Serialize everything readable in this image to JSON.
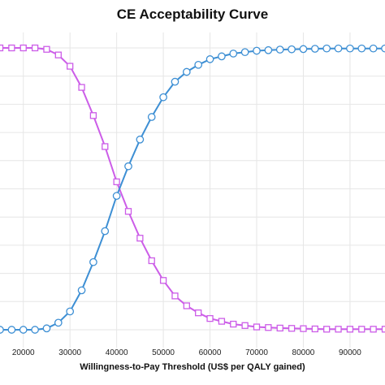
{
  "chart_data": {
    "type": "line",
    "title": "CE Acceptability Curve",
    "xlabel": "Willingness-to-Pay Threshold (US$ per QALY gained)",
    "ylabel": "",
    "x_tick_labels": [
      "20000",
      "30000",
      "40000",
      "50000",
      "60000",
      "70000",
      "80000",
      "90000"
    ],
    "xlim": [
      15000,
      97500
    ],
    "ylim": [
      0,
      1
    ],
    "grid": true,
    "colors": {
      "series_a": "#cc5de8",
      "series_b": "#3d8fd4"
    },
    "x": [
      15000,
      17500,
      20000,
      22500,
      25000,
      27500,
      30000,
      32500,
      35000,
      37500,
      40000,
      42500,
      45000,
      47500,
      50000,
      52500,
      55000,
      57500,
      60000,
      62500,
      65000,
      67500,
      70000,
      72500,
      75000,
      77500,
      80000,
      82500,
      85000,
      87500,
      90000,
      92500,
      95000,
      97500
    ],
    "series": [
      {
        "marker": "square",
        "color": "#cc5de8",
        "values": [
          1.0,
          1.0,
          1.0,
          1.0,
          0.995,
          0.975,
          0.935,
          0.86,
          0.76,
          0.65,
          0.525,
          0.42,
          0.325,
          0.245,
          0.175,
          0.12,
          0.085,
          0.06,
          0.04,
          0.03,
          0.02,
          0.015,
          0.01,
          0.008,
          0.006,
          0.005,
          0.004,
          0.003,
          0.002,
          0.002,
          0.002,
          0.002,
          0.002,
          0.002
        ]
      },
      {
        "marker": "circle",
        "color": "#3d8fd4",
        "values": [
          0.0,
          0.0,
          0.0,
          0.0,
          0.005,
          0.025,
          0.065,
          0.14,
          0.24,
          0.35,
          0.475,
          0.58,
          0.675,
          0.755,
          0.825,
          0.88,
          0.915,
          0.94,
          0.96,
          0.97,
          0.98,
          0.985,
          0.99,
          0.992,
          0.994,
          0.995,
          0.996,
          0.997,
          0.998,
          0.998,
          0.998,
          0.998,
          0.998,
          0.998
        ]
      }
    ]
  }
}
